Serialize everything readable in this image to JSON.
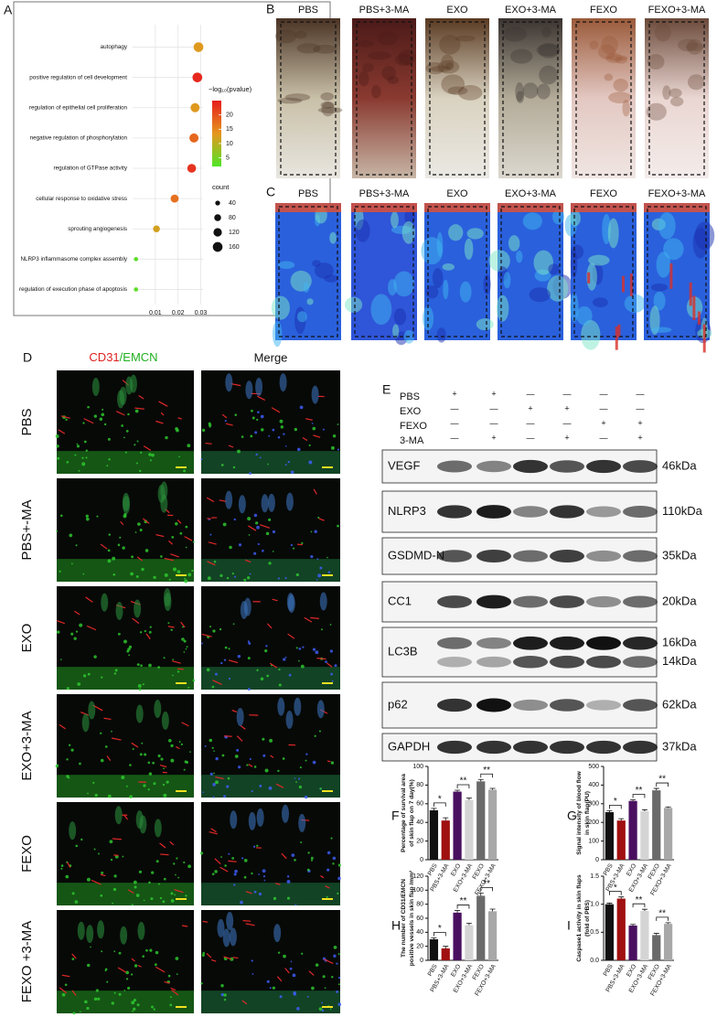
{
  "chart_data": [
    {
      "type": "scatter",
      "panel": "A",
      "categories": [
        "autophagy",
        "positive regulation of cell development",
        "regulation of epithelial cell proliferation",
        "negative regulation of phosphorylation",
        "regulation of GTPase activity",
        "cellular response to oxidative stress",
        "sprouting angiogenesis",
        "NLRP3 inflammasome complex assembly",
        "regulation of execution phase of apoptosis"
      ],
      "x": [
        0.029,
        0.0285,
        0.0275,
        0.027,
        0.026,
        0.0185,
        0.0105,
        0.0015,
        0.0015
      ],
      "sizes": [
        160,
        160,
        140,
        140,
        130,
        110,
        80,
        30,
        30
      ],
      "neglog10p": [
        13,
        24,
        13,
        18,
        23,
        17,
        12,
        3,
        3
      ],
      "xlim": [
        0,
        0.031
      ],
      "xticks": [
        0.01,
        0.02,
        0.03
      ],
      "grid": true,
      "color_label": "−log₁₀(pvalue)",
      "color_lim": [
        2,
        25
      ],
      "color_ticks": [
        5,
        10,
        15,
        20
      ],
      "size_label": "count",
      "size_ticks": [
        40,
        80,
        120,
        160
      ]
    },
    {
      "type": "bar",
      "panel": "F",
      "ylabel": [
        "Percentage of survival area",
        "of skin flap on 7 day(%)"
      ],
      "categories": [
        "PBS",
        "PBS+3-MA",
        "EXO",
        "EXO+3-MA",
        "FEXO",
        "FEXO+3-MA"
      ],
      "values": [
        53,
        42,
        73,
        64,
        84,
        75
      ],
      "errors": [
        2,
        3,
        1.5,
        2,
        2,
        1.5
      ],
      "colors": [
        "#111111",
        "#a01010",
        "#4a1060",
        "#d4d4d4",
        "#6a6a6a",
        "#a8a8a8"
      ],
      "ylim": [
        0,
        100
      ],
      "yticks": [
        0,
        20,
        40,
        60,
        80,
        100
      ],
      "significance": [
        "*",
        "**",
        "**"
      ]
    },
    {
      "type": "bar",
      "panel": "G",
      "ylabel": [
        "Signal intensity of blood flow",
        "in skin flap(PU)"
      ],
      "categories": [
        "PBS",
        "PBS+3-MA",
        "EXO",
        "EXO+3-MA",
        "FEXO",
        "FEXO+3-MA"
      ],
      "values": [
        255,
        210,
        315,
        260,
        372,
        278
      ],
      "errors": [
        8,
        10,
        6,
        8,
        10,
        5
      ],
      "colors": [
        "#111111",
        "#a01010",
        "#4a1060",
        "#d4d4d4",
        "#6a6a6a",
        "#a8a8a8"
      ],
      "ylim": [
        0,
        500
      ],
      "yticks": [
        0,
        100,
        200,
        300,
        400,
        500
      ],
      "significance": [
        "*",
        "**",
        "**"
      ]
    },
    {
      "type": "bar",
      "panel": "H",
      "ylabel": [
        "The number of CD31/EMCN",
        "positive vessels in skin flap /mm²"
      ],
      "categories": [
        "PBS",
        "PBS+3-MA",
        "EXO",
        "EXO+3-MA",
        "FEXO",
        "FEXO+3-MA"
      ],
      "values": [
        30,
        17,
        68,
        50,
        92,
        70
      ],
      "errors": [
        2,
        3,
        3,
        3,
        4,
        3
      ],
      "colors": [
        "#111111",
        "#a01010",
        "#4a1060",
        "#d4d4d4",
        "#6a6a6a",
        "#a8a8a8"
      ],
      "ylim": [
        0,
        120
      ],
      "yticks": [
        0,
        20,
        40,
        60,
        80,
        100,
        120
      ],
      "significance": [
        "*",
        "**",
        "**"
      ]
    },
    {
      "type": "bar",
      "panel": "I",
      "ylabel": [
        "Caspase1 activity in skin flaps",
        "(fold of PBS)"
      ],
      "categories": [
        "PBS",
        "PBS+3-MA",
        "EXO",
        "EXO+3-MA",
        "FEXO",
        "FEXO+3-MA"
      ],
      "values": [
        1.0,
        1.1,
        0.62,
        0.88,
        0.45,
        0.65
      ],
      "errors": [
        0.02,
        0.03,
        0.02,
        0.03,
        0.03,
        0.02
      ],
      "colors": [
        "#111111",
        "#a01010",
        "#4a1060",
        "#d4d4d4",
        "#6a6a6a",
        "#a8a8a8"
      ],
      "ylim": [
        0,
        1.5
      ],
      "yticks": [
        {
          "value": 0,
          "label": "0.0"
        },
        0.5,
        {
          "value": 1,
          "label": "1.0"
        },
        1.5
      ],
      "significance": [
        "*",
        "**",
        "**"
      ]
    }
  ],
  "photos": {
    "panel": "B",
    "labels": [
      "PBS",
      "PBS+3-MA",
      "EXO",
      "EXO+3-MA",
      "FEXO",
      "FEXO+3-MA"
    ]
  },
  "laser_doppler": {
    "panel": "C",
    "labels": [
      "PBS",
      "PBS+3-MA",
      "EXO",
      "EXO+3-MA",
      "FEXO",
      "FEXO+3-MA"
    ]
  },
  "immunofluorescence": {
    "panel": "D",
    "channels": [
      "CD31",
      "/EMCN"
    ],
    "merge": "Merge",
    "rows": [
      "PBS",
      "PBS+-MA",
      "EXO",
      "EXO+3-MA",
      "FEXO",
      "FEXO +3-MA"
    ]
  },
  "western_blot": {
    "panel": "E",
    "treatments": [
      "PBS",
      "EXO",
      "FEXO",
      "3-MA"
    ],
    "signs": [
      [
        "+",
        "+",
        "—",
        "—",
        "—",
        "—"
      ],
      [
        "—",
        "—",
        "+",
        "+",
        "—",
        "—"
      ],
      [
        "—",
        "—",
        "—",
        "—",
        "+",
        "+"
      ],
      [
        "—",
        "+",
        "—",
        "+",
        "—",
        "+"
      ]
    ],
    "proteins": [
      {
        "name": "VEGF",
        "kda": [
          "46kDa"
        ]
      },
      {
        "name": "NLRP3",
        "kda": [
          "110kDa"
        ]
      },
      {
        "name": "GSDMD-N",
        "kda": [
          "35kDa"
        ]
      },
      {
        "name": "CC1",
        "kda": [
          "20kDa"
        ]
      },
      {
        "name": "LC3B",
        "kda": [
          "16kDa",
          "14kDa"
        ]
      },
      {
        "name": "p62",
        "kda": [
          "62kDa"
        ]
      },
      {
        "name": "GAPDH",
        "kda": [
          "37kDa"
        ]
      }
    ]
  }
}
